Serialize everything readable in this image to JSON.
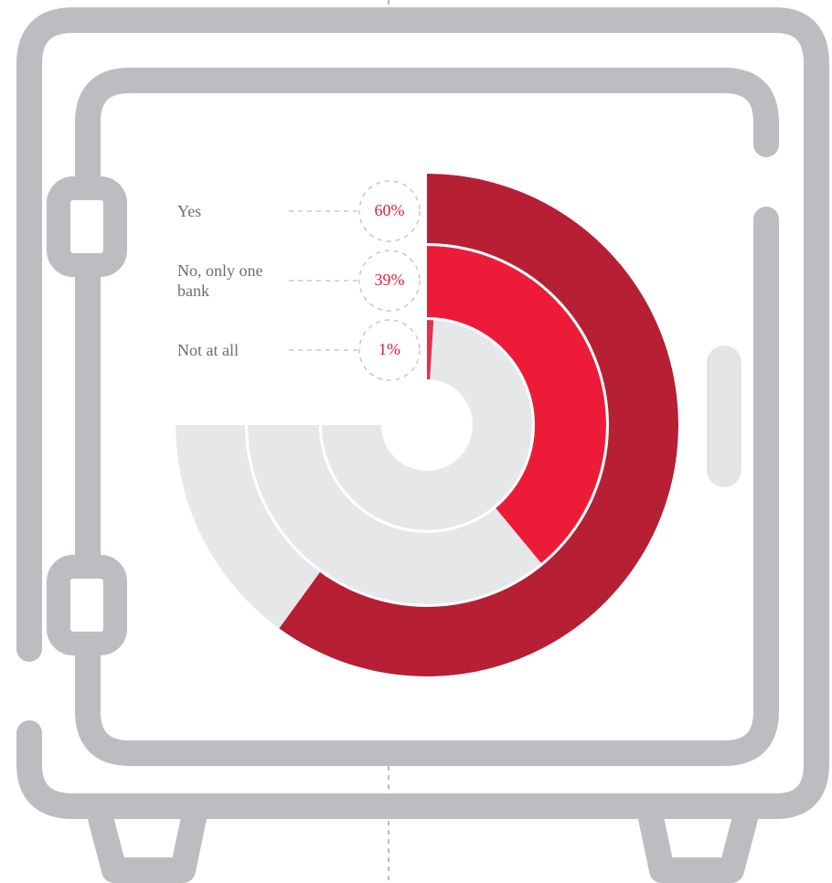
{
  "chart_data": {
    "type": "radial-bar",
    "categories": [
      "Yes",
      "No, only one bank",
      "Not at all"
    ],
    "values": [
      60,
      39,
      1
    ],
    "value_labels": [
      "60%",
      "39%",
      "1%"
    ],
    "colors": [
      "#b71f34",
      "#ec1c38",
      "#e3304c"
    ],
    "track_color": "#e6e7e8",
    "label_color": "#e0203a"
  }
}
